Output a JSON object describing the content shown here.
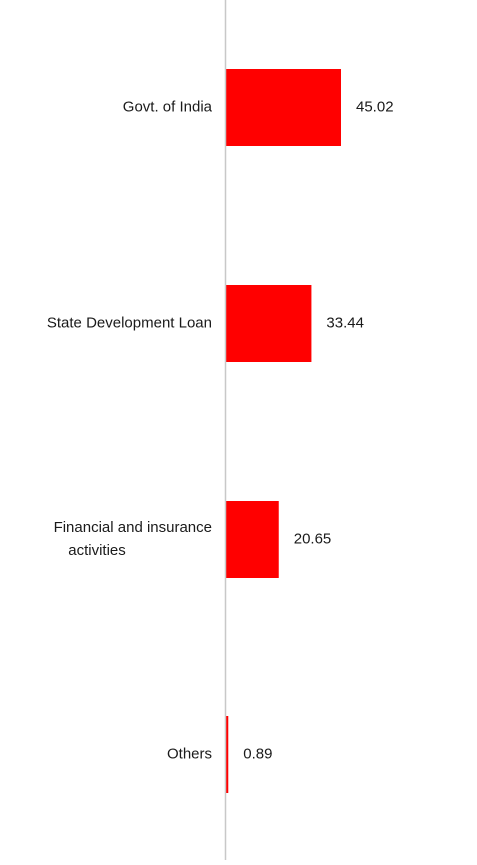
{
  "chart_data": {
    "type": "bar",
    "orientation": "horizontal",
    "title": "",
    "xlabel": "",
    "ylabel": "",
    "categories": [
      "Govt. of India",
      "State Development Loan",
      "Financial and insurance activities",
      "Others"
    ],
    "category_lines": [
      [
        "Govt. of India"
      ],
      [
        "State Development Loan"
      ],
      [
        "Financial and insurance",
        "activities"
      ],
      [
        "Others"
      ]
    ],
    "values": [
      45.02,
      33.44,
      20.65,
      0.89
    ],
    "value_labels": [
      "45.02",
      "33.44",
      "20.65",
      "0.89"
    ],
    "xlim": [
      0,
      100
    ],
    "grid": false,
    "legend": "none",
    "bar_color": "#ff0000",
    "axis_color": "#c8c8c8"
  }
}
